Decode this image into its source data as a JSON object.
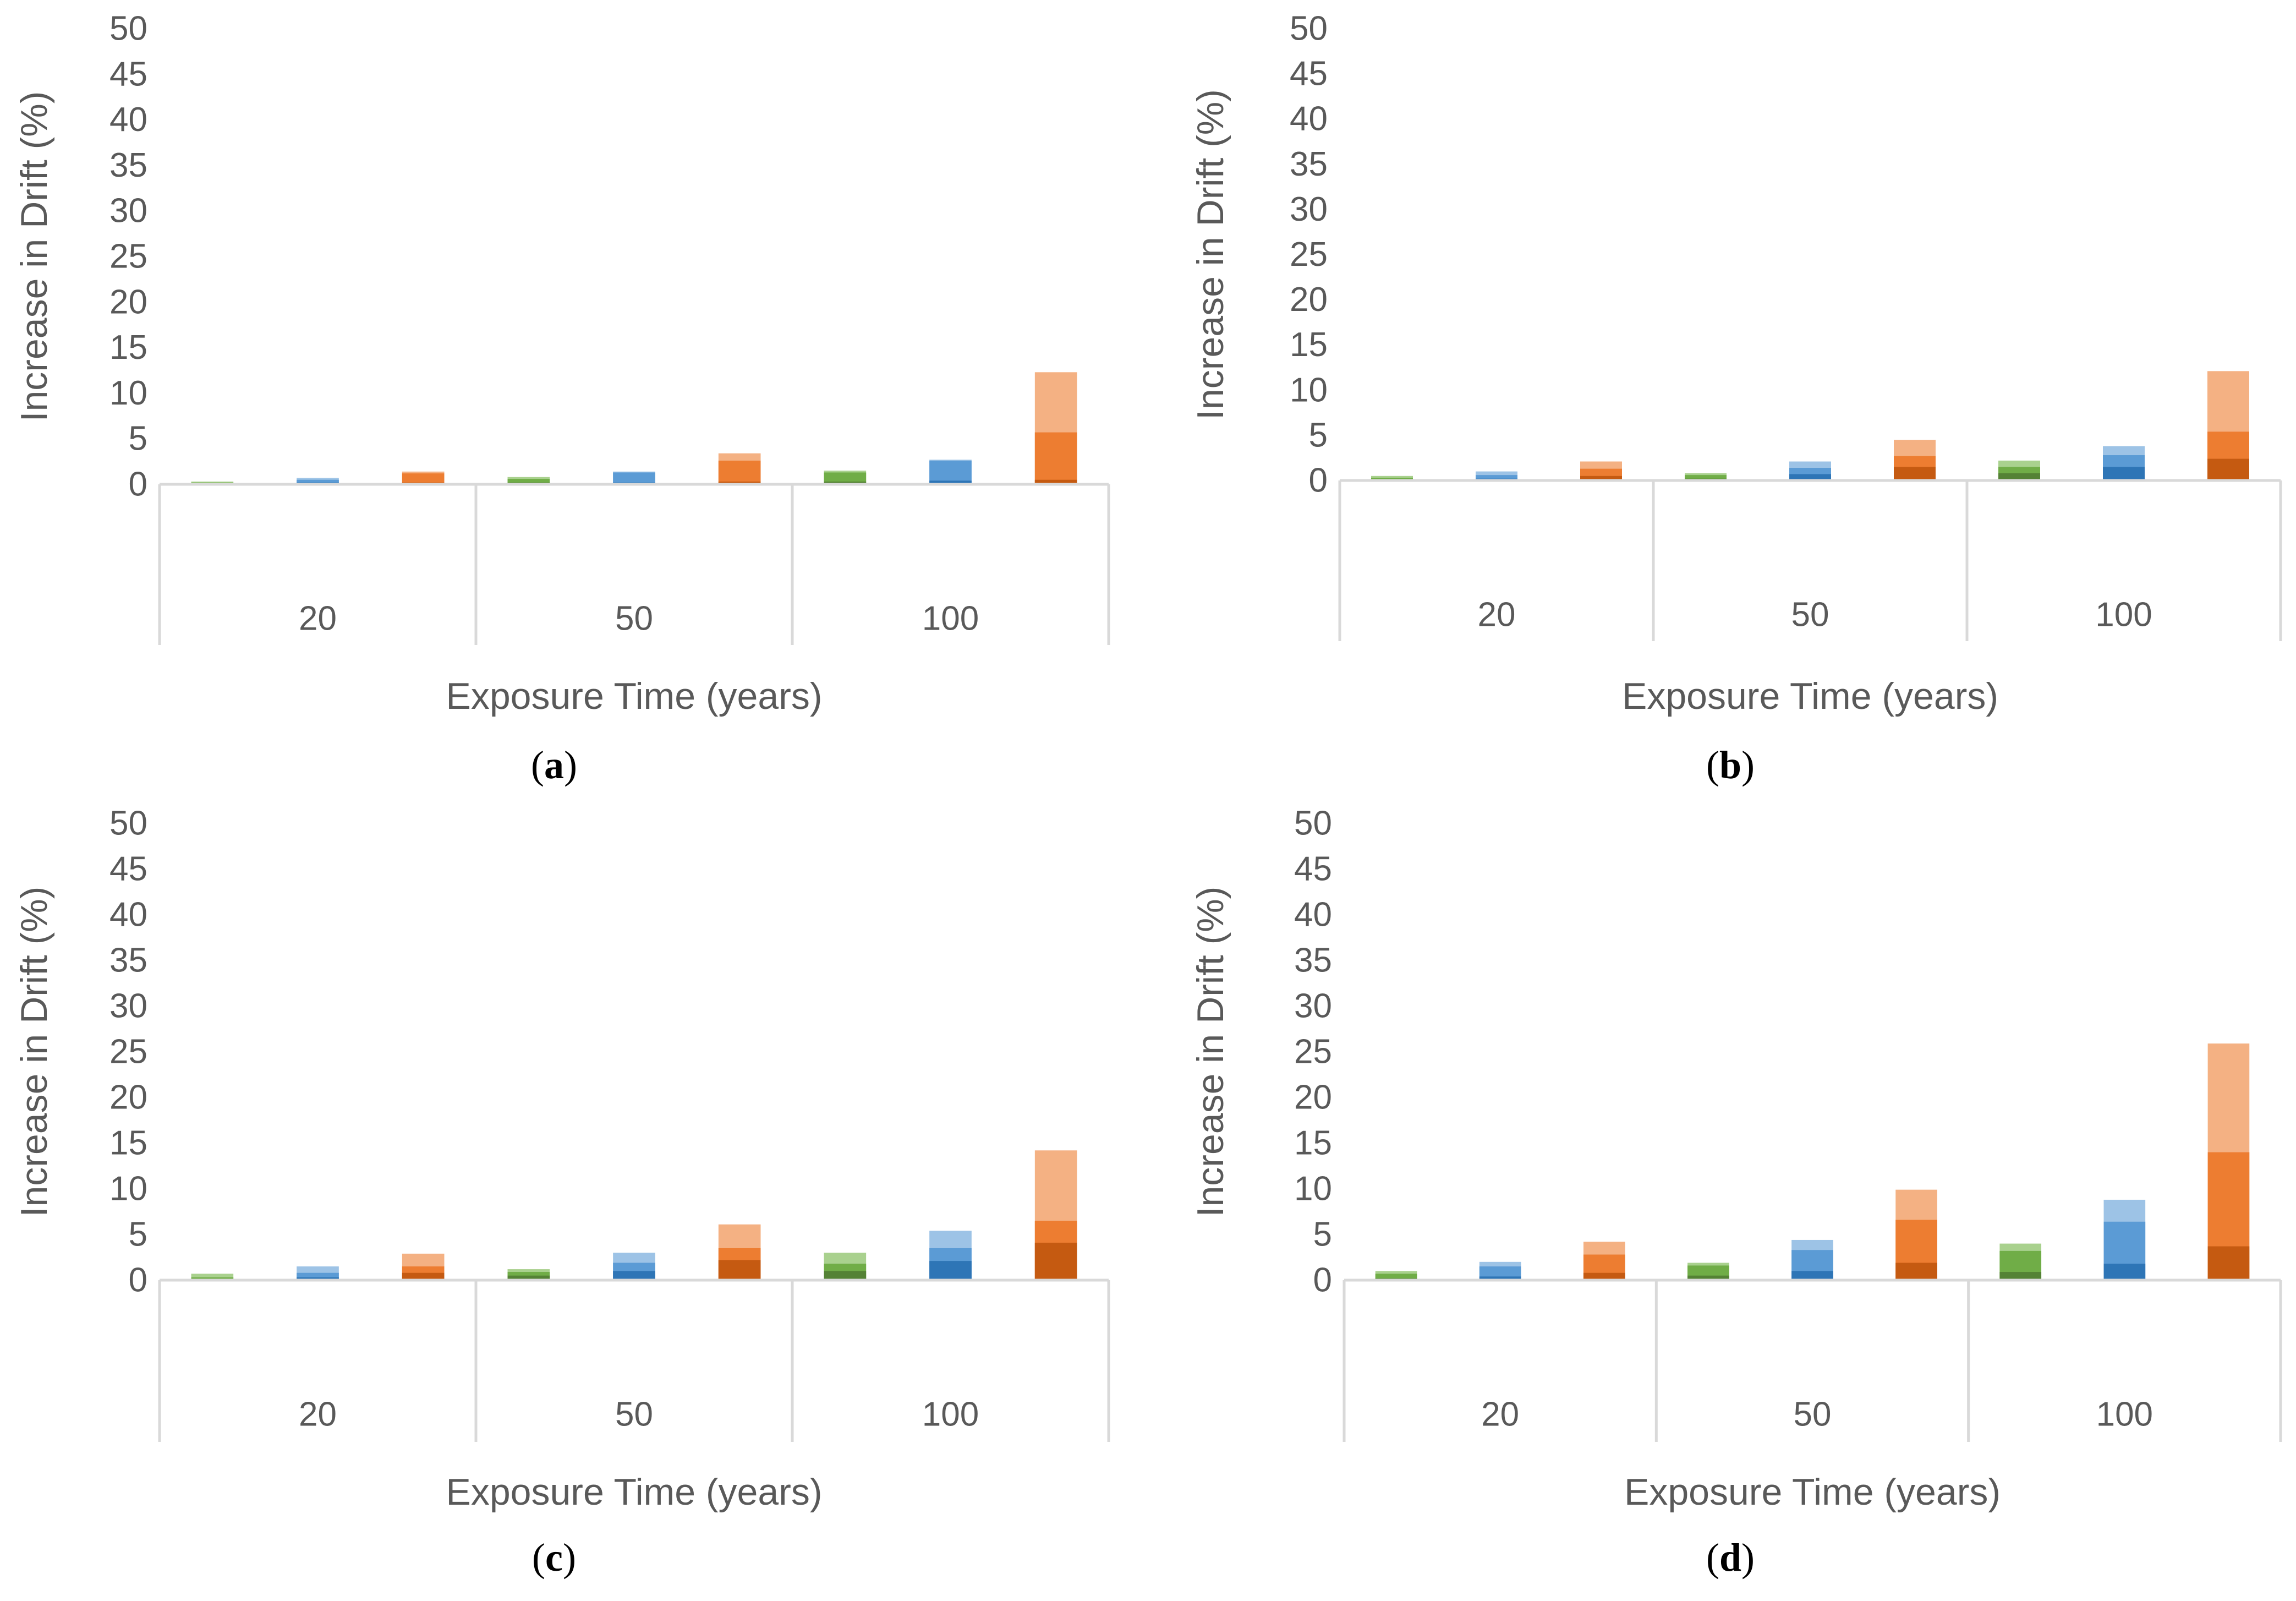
{
  "colors": {
    "green": [
      "#548235",
      "#70AD47",
      "#A9D18E"
    ],
    "blue": [
      "#2E75B6",
      "#5B9BD5",
      "#9DC3E6"
    ],
    "orange": [
      "#C55A11",
      "#ED7D31",
      "#F4B183"
    ],
    "axis": "#D9D9D9",
    "text": "#595959"
  },
  "chart_data": [
    {
      "panel": "a",
      "type": "bar",
      "stacking": "overlapping",
      "title": "",
      "xlabel": "Exposure Time (years)",
      "ylabel": "Increase in Drift (%)",
      "ylim": [
        0,
        50
      ],
      "yticks": [
        "0",
        "5",
        "10",
        "15",
        "20",
        "25",
        "30",
        "35",
        "40",
        "45",
        "50"
      ],
      "categories": [
        "20",
        "50",
        "100"
      ],
      "groups": [
        {
          "category": "20",
          "bars": [
            {
              "color": "green",
              "layers": [
                0.1,
                0.2,
                0.3
              ]
            },
            {
              "color": "blue",
              "layers": [
                0.2,
                0.5,
                0.7
              ]
            },
            {
              "color": "orange",
              "layers": [
                0.2,
                1.2,
                1.4
              ]
            }
          ]
        },
        {
          "category": "50",
          "bars": [
            {
              "color": "green",
              "layers": [
                0.2,
                0.6,
                0.8
              ]
            },
            {
              "color": "blue",
              "layers": [
                0.2,
                1.3,
                1.4
              ]
            },
            {
              "color": "orange",
              "layers": [
                0.3,
                2.6,
                3.4
              ]
            }
          ]
        },
        {
          "category": "100",
          "bars": [
            {
              "color": "green",
              "layers": [
                0.3,
                1.3,
                1.5
              ]
            },
            {
              "color": "blue",
              "layers": [
                0.4,
                2.6,
                2.7
              ]
            },
            {
              "color": "orange",
              "layers": [
                0.5,
                5.7,
                12.3
              ]
            }
          ]
        }
      ]
    },
    {
      "panel": "b",
      "type": "bar",
      "stacking": "overlapping",
      "title": "",
      "xlabel": "Exposure Time (years)",
      "ylabel": "Increase in Drift (%)",
      "ylim": [
        0,
        50
      ],
      "yticks": [
        "0",
        "5",
        "10",
        "15",
        "20",
        "25",
        "30",
        "35",
        "40",
        "45",
        "50"
      ],
      "categories": [
        "20",
        "50",
        "100"
      ],
      "groups": [
        {
          "category": "20",
          "bars": [
            {
              "color": "green",
              "layers": [
                0.1,
                0.3,
                0.5
              ]
            },
            {
              "color": "blue",
              "layers": [
                0.2,
                0.6,
                1.0
              ]
            },
            {
              "color": "orange",
              "layers": [
                0.5,
                1.3,
                2.1
              ]
            }
          ]
        },
        {
          "category": "50",
          "bars": [
            {
              "color": "green",
              "layers": [
                0.2,
                0.6,
                0.8
              ]
            },
            {
              "color": "blue",
              "layers": [
                0.7,
                1.4,
                2.1
              ]
            },
            {
              "color": "orange",
              "layers": [
                1.5,
                2.7,
                4.5
              ]
            }
          ]
        },
        {
          "category": "100",
          "bars": [
            {
              "color": "green",
              "layers": [
                0.8,
                1.5,
                2.2
              ]
            },
            {
              "color": "blue",
              "layers": [
                1.5,
                2.8,
                3.8
              ]
            },
            {
              "color": "orange",
              "layers": [
                2.4,
                5.4,
                12.1
              ]
            }
          ]
        }
      ]
    },
    {
      "panel": "c",
      "type": "bar",
      "stacking": "overlapping",
      "title": "",
      "xlabel": "Exposure Time (years)",
      "ylabel": "Increase in Drift (%)",
      "ylim": [
        0,
        50
      ],
      "yticks": [
        "0",
        "5",
        "10",
        "15",
        "20",
        "25",
        "30",
        "35",
        "40",
        "45",
        "50"
      ],
      "categories": [
        "20",
        "50",
        "100"
      ],
      "groups": [
        {
          "category": "20",
          "bars": [
            {
              "color": "green",
              "layers": [
                0.1,
                0.3,
                0.7
              ]
            },
            {
              "color": "blue",
              "layers": [
                0.3,
                0.8,
                1.5
              ]
            },
            {
              "color": "orange",
              "layers": [
                0.8,
                1.5,
                2.9
              ]
            }
          ]
        },
        {
          "category": "50",
          "bars": [
            {
              "color": "green",
              "layers": [
                0.5,
                0.9,
                1.2
              ]
            },
            {
              "color": "blue",
              "layers": [
                1.0,
                1.9,
                3.0
              ]
            },
            {
              "color": "orange",
              "layers": [
                2.2,
                3.5,
                6.1
              ]
            }
          ]
        },
        {
          "category": "100",
          "bars": [
            {
              "color": "green",
              "layers": [
                1.0,
                1.8,
                3.0
              ]
            },
            {
              "color": "blue",
              "layers": [
                2.1,
                3.5,
                5.4
              ]
            },
            {
              "color": "orange",
              "layers": [
                4.1,
                6.5,
                14.2
              ]
            }
          ]
        }
      ]
    },
    {
      "panel": "d",
      "type": "bar",
      "stacking": "overlapping",
      "title": "",
      "xlabel": "Exposure Time (years)",
      "ylabel": "Increase in Drift (%)",
      "ylim": [
        0,
        50
      ],
      "yticks": [
        "0",
        "5",
        "10",
        "15",
        "20",
        "25",
        "30",
        "35",
        "40",
        "45",
        "50"
      ],
      "categories": [
        "20",
        "50",
        "100"
      ],
      "groups": [
        {
          "category": "20",
          "bars": [
            {
              "color": "green",
              "layers": [
                0.2,
                0.7,
                1.0
              ]
            },
            {
              "color": "blue",
              "layers": [
                0.4,
                1.5,
                2.0
              ]
            },
            {
              "color": "orange",
              "layers": [
                0.8,
                2.8,
                4.2
              ]
            }
          ]
        },
        {
          "category": "50",
          "bars": [
            {
              "color": "green",
              "layers": [
                0.5,
                1.6,
                1.9
              ]
            },
            {
              "color": "blue",
              "layers": [
                1.0,
                3.3,
                4.4
              ]
            },
            {
              "color": "orange",
              "layers": [
                1.9,
                6.6,
                9.9
              ]
            }
          ]
        },
        {
          "category": "100",
          "bars": [
            {
              "color": "green",
              "layers": [
                0.9,
                3.2,
                4.0
              ]
            },
            {
              "color": "blue",
              "layers": [
                1.8,
                6.4,
                8.8
              ]
            },
            {
              "color": "orange",
              "layers": [
                3.7,
                14.0,
                25.9
              ]
            }
          ]
        }
      ]
    }
  ],
  "panel_labels": [
    {
      "open": "(",
      "letter": "a",
      "close": ")"
    },
    {
      "open": "(",
      "letter": "b",
      "close": ")"
    },
    {
      "open": "(",
      "letter": "c",
      "close": ")"
    },
    {
      "open": "(",
      "letter": "d",
      "close": ")"
    }
  ]
}
